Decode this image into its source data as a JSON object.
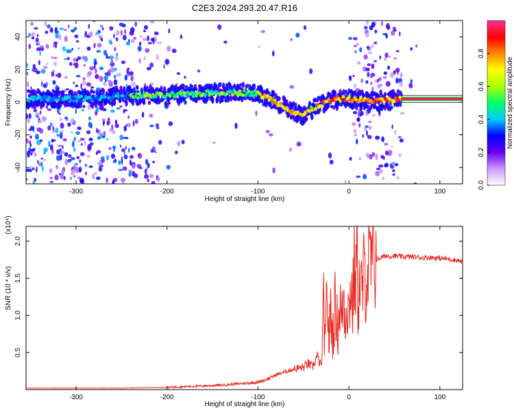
{
  "title": "C2E3.2024.293.20.47.R16",
  "chart_data": [
    {
      "type": "heatmap",
      "name": "spectrogram",
      "xlabel": "Height of straight line (km)",
      "ylabel": "Frequency (Hz)",
      "xlim": [
        -355,
        125
      ],
      "ylim": [
        -50,
        50
      ],
      "xticks": [
        -300,
        -200,
        -100,
        0,
        100
      ],
      "xtick_labels": [
        "-300",
        "-200",
        "-100",
        "0",
        "100"
      ],
      "yticks": [
        -40,
        -20,
        0,
        20,
        40
      ],
      "ytick_labels": [
        "-40",
        "-20",
        "0",
        "20",
        "40"
      ],
      "colorbar": {
        "label": "Normalized spectral amplitude",
        "range": [
          0,
          1
        ],
        "ticks": [
          0,
          0.2,
          0.4,
          0.6,
          0.8
        ],
        "tick_labels": [
          "0.0",
          "0.2",
          "0.4",
          "0.6",
          "0.8"
        ],
        "colors": [
          "#ffffff",
          "#cc99ff",
          "#6600ee",
          "#0000ff",
          "#00ccff",
          "#00ff66",
          "#aaff00",
          "#ffff00",
          "#ff8800",
          "#ff0000",
          "#ff3399"
        ]
      },
      "ridge": {
        "x": [
          -355,
          -330,
          -300,
          -270,
          -250,
          -230,
          -200,
          -170,
          -140,
          -120,
          -100,
          -90,
          -80,
          -70,
          -60,
          -50,
          -40,
          -30,
          -20,
          -10,
          0,
          20,
          40,
          60,
          90,
          125
        ],
        "y": [
          2,
          2,
          2,
          3,
          4,
          4,
          4,
          5,
          6,
          6,
          5,
          3,
          0,
          -3,
          -6,
          -8,
          -4,
          -1,
          1,
          2,
          2,
          1,
          1,
          2,
          2,
          2
        ]
      }
    },
    {
      "type": "line",
      "name": "snr",
      "xlabel": "Height of straight line (km)",
      "ylabel": "SNR (10 * v/v)",
      "y_multiplier": "(x10⁴)",
      "xlim": [
        -355,
        125
      ],
      "ylim": [
        0,
        2.2
      ],
      "xticks": [
        -300,
        -200,
        -100,
        0,
        100
      ],
      "xtick_labels": [
        "-300",
        "-200",
        "-100",
        "0",
        "100"
      ],
      "yticks": [
        0.5,
        1.0,
        1.5,
        2.0
      ],
      "ytick_labels": [
        "0.5",
        "1.0",
        "1.5",
        "2.0"
      ],
      "color": "#e8251f",
      "series": [
        {
          "name": "SNR",
          "x": [
            -355,
            -300,
            -250,
            -200,
            -180,
            -160,
            -140,
            -120,
            -100,
            -90,
            -80,
            -70,
            -60,
            -50,
            -45,
            -40,
            -35,
            -30,
            -28,
            -26,
            -24,
            -22,
            -20,
            -18,
            -15,
            -12,
            -10,
            -8,
            -6,
            -4,
            -2,
            0,
            2,
            4,
            6,
            8,
            9,
            10,
            12,
            14,
            16,
            18,
            20,
            25,
            30,
            35,
            40,
            50,
            60,
            70,
            80,
            90,
            100,
            110,
            120,
            125
          ],
          "y": [
            0.02,
            0.02,
            0.02,
            0.03,
            0.04,
            0.05,
            0.06,
            0.08,
            0.1,
            0.14,
            0.2,
            0.24,
            0.28,
            0.3,
            0.35,
            0.3,
            0.45,
            0.3,
            1.2,
            0.5,
            1.45,
            0.6,
            1.1,
            0.7,
            1.15,
            0.8,
            1.2,
            0.9,
            1.3,
            1.0,
            1.25,
            1.0,
            1.5,
            1.1,
            1.7,
            1.4,
            2.2,
            1.2,
            1.45,
            1.3,
            1.5,
            1.55,
            1.6,
            1.7,
            1.75,
            1.78,
            1.8,
            1.8,
            1.79,
            1.79,
            1.78,
            1.78,
            1.77,
            1.76,
            1.74,
            1.72
          ]
        }
      ]
    }
  ]
}
